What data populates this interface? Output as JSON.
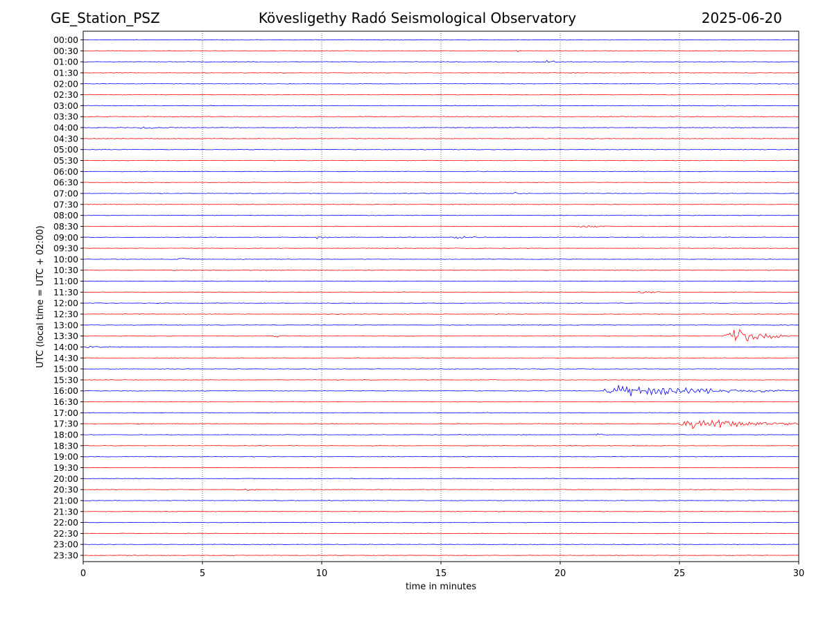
{
  "header": {
    "station": "GE_Station_PSZ",
    "observatory": "Kövesligethy Radó Seismological Observatory",
    "date": "2025-06-20"
  },
  "colors": {
    "even_trace": "#0000ff",
    "odd_trace": "#ff0000",
    "axes": "#000000",
    "grid": "#000000",
    "background": "#ffffff"
  },
  "chart_data": {
    "type": "line",
    "title": "Kövesligethy Radó Seismological Observatory",
    "xlabel": "time in minutes",
    "ylabel": "UTC (local time = UTC + 02:00)",
    "xlim": [
      0,
      30
    ],
    "xticks": [
      0,
      5,
      10,
      15,
      20,
      25,
      30
    ],
    "grid": "vertical-dotted",
    "rows": [
      "00:00",
      "00:30",
      "01:00",
      "01:30",
      "02:00",
      "02:30",
      "03:00",
      "03:30",
      "04:00",
      "04:30",
      "05:00",
      "05:30",
      "06:00",
      "06:30",
      "07:00",
      "07:30",
      "08:00",
      "08:30",
      "09:00",
      "09:30",
      "10:00",
      "10:30",
      "11:00",
      "11:30",
      "12:00",
      "12:30",
      "13:00",
      "13:30",
      "14:00",
      "14:30",
      "15:00",
      "15:30",
      "16:00",
      "16:30",
      "17:00",
      "17:30",
      "18:00",
      "18:30",
      "19:00",
      "19:30",
      "20:00",
      "20:30",
      "21:00",
      "21:30",
      "22:00",
      "22:30",
      "23:00",
      "23:30"
    ],
    "events": [
      {
        "row": "00:30",
        "start_min": 18.1,
        "duration_min": 0.4,
        "amplitude": 1.5
      },
      {
        "row": "01:00",
        "start_min": 19.4,
        "duration_min": 0.6,
        "amplitude": 2.5
      },
      {
        "row": "04:00",
        "start_min": 2.2,
        "duration_min": 2.0,
        "amplitude": 1.0
      },
      {
        "row": "07:00",
        "start_min": 18.0,
        "duration_min": 0.8,
        "amplitude": 1.8
      },
      {
        "row": "08:30",
        "start_min": 20.7,
        "duration_min": 1.5,
        "amplitude": 2.0
      },
      {
        "row": "09:00",
        "start_min": 9.7,
        "duration_min": 0.8,
        "amplitude": 2.0
      },
      {
        "row": "09:00",
        "start_min": 15.4,
        "duration_min": 1.7,
        "amplitude": 3.2
      },
      {
        "row": "09:30",
        "start_min": 17.5,
        "duration_min": 0.4,
        "amplitude": 1.8
      },
      {
        "row": "10:00",
        "start_min": 4.0,
        "duration_min": 0.5,
        "amplitude": 2.5
      },
      {
        "row": "11:30",
        "start_min": 23.3,
        "duration_min": 1.2,
        "amplitude": 2.5
      },
      {
        "row": "13:30",
        "start_min": 8.0,
        "duration_min": 1.0,
        "amplitude": 1.2
      },
      {
        "row": "13:30",
        "start_min": 26.8,
        "duration_min": 3.2,
        "amplitude": 8.0
      },
      {
        "row": "14:00",
        "start_min": 0.0,
        "duration_min": 1.8,
        "amplitude": 1.2
      },
      {
        "row": "16:00",
        "start_min": 21.8,
        "duration_min": 8.2,
        "amplitude": 8.0
      },
      {
        "row": "17:30",
        "start_min": 25.0,
        "duration_min": 5.0,
        "amplitude": 9.0
      },
      {
        "row": "18:00",
        "start_min": 21.5,
        "duration_min": 0.5,
        "amplitude": 1.2
      },
      {
        "row": "20:30",
        "start_min": 6.8,
        "duration_min": 0.5,
        "amplitude": 2.5
      }
    ]
  }
}
